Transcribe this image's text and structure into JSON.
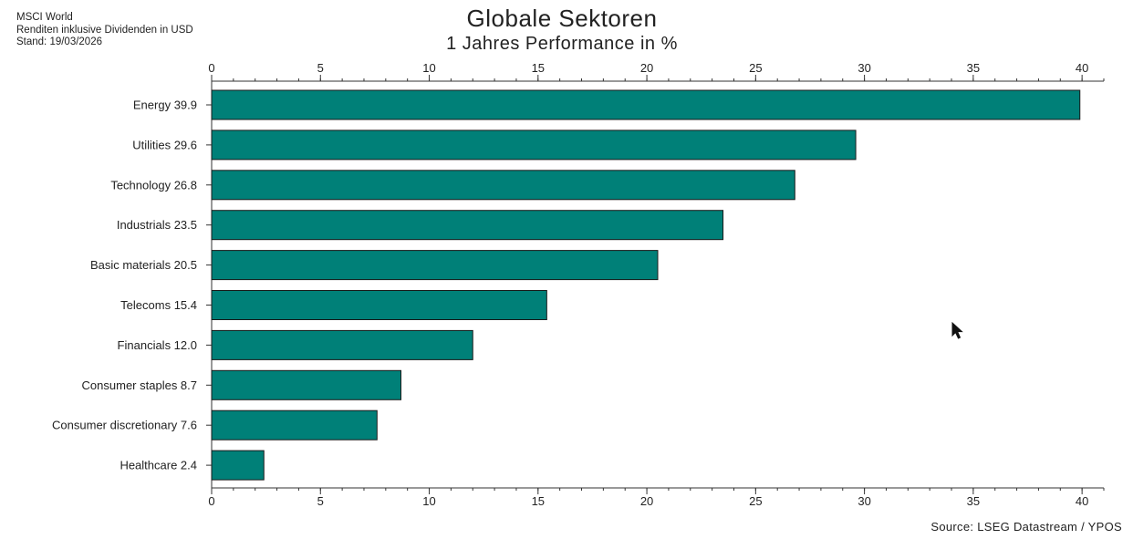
{
  "header": {
    "line1": "MSCI World",
    "line2": "Renditen inklusive Dividenden in USD",
    "line3": "Stand: 19/03/2026"
  },
  "source": "Source: LSEG Datastream / YPOS",
  "cursor_icon": "mouse-pointer-icon",
  "chart_data": {
    "type": "bar",
    "orientation": "horizontal",
    "title": "Globale Sektoren",
    "subtitle": "1 Jahres Performance in %",
    "categories": [
      "Energy 39.9",
      "Utilities 29.6",
      "Technology 26.8",
      "Industrials 23.5",
      "Basic materials 20.5",
      "Telecoms 15.4",
      "Financials 12.0",
      "Consumer staples 8.7",
      "Consumer discretionary 7.6",
      "Healthcare 2.4"
    ],
    "values": [
      39.9,
      29.6,
      26.8,
      23.5,
      20.5,
      15.4,
      12.0,
      8.7,
      7.6,
      2.4
    ],
    "xlim": [
      0,
      41
    ],
    "ticks": [
      0,
      5,
      10,
      15,
      20,
      25,
      30,
      35,
      40
    ],
    "tick_labels": [
      "0",
      "5",
      "10",
      "15",
      "20",
      "25",
      "30",
      "35",
      "40"
    ],
    "axis_position": "top and bottom",
    "grid": false,
    "bar_color": "#008078",
    "bar_edge_color": "#1a1a1a"
  }
}
